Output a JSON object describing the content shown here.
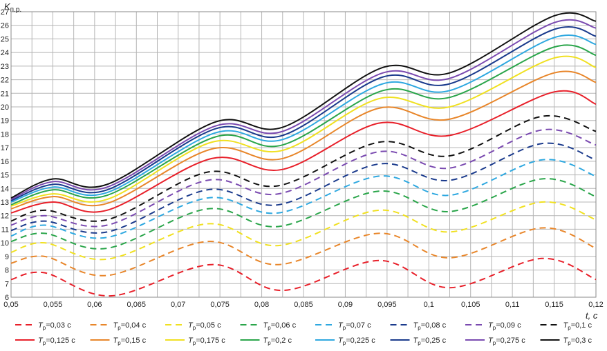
{
  "chart_data": {
    "type": "line",
    "title": "",
    "ylabel": "K",
    "ylabel_sub": "п.р.",
    "xlabel": "t, с",
    "xlim": [
      0.05,
      0.12
    ],
    "ylim": [
      6,
      27
    ],
    "grid": true,
    "legend_position": "bottom",
    "x_ticks": [
      "0,05",
      "0,055",
      "0,06",
      "0,065",
      "0,07",
      "0,075",
      "0,08",
      "0,085",
      "0,09",
      "0,095",
      "0,1",
      "0,105",
      "0,11",
      "0,115",
      "0,12"
    ],
    "y_ticks": [
      "6",
      "7",
      "8",
      "9",
      "10",
      "11",
      "12",
      "13",
      "14",
      "15",
      "16",
      "17",
      "18",
      "19",
      "20",
      "21",
      "22",
      "23",
      "24",
      "25",
      "26",
      "27"
    ],
    "legend_prefix": "T",
    "legend_sub": "p",
    "series": [
      {
        "name": "=0,03 с",
        "color": "#e8202a",
        "dashed": true,
        "x": [
          0.05,
          0.054,
          0.062,
          0.074,
          0.0825,
          0.094,
          0.1025,
          0.1135,
          0.12
        ],
        "y": [
          7.3,
          7.8,
          6.1,
          8.4,
          6.5,
          8.7,
          6.7,
          8.85,
          7.3
        ]
      },
      {
        "name": "=0,04 с",
        "color": "#e8862a",
        "dashed": true,
        "x": [
          0.05,
          0.054,
          0.0615,
          0.0735,
          0.082,
          0.094,
          0.1025,
          0.1135,
          0.12
        ],
        "y": [
          8.5,
          9.0,
          7.6,
          10.1,
          8.4,
          10.7,
          8.9,
          11.1,
          9.6
        ]
      },
      {
        "name": "=0,05 с",
        "color": "#f0e020",
        "dashed": true,
        "x": [
          0.05,
          0.054,
          0.0615,
          0.0735,
          0.082,
          0.094,
          0.1025,
          0.1135,
          0.12
        ],
        "y": [
          9.3,
          10.0,
          8.8,
          11.4,
          9.8,
          12.4,
          10.8,
          13.0,
          11.7
        ]
      },
      {
        "name": "=0,06 с",
        "color": "#2aa54a",
        "dashed": true,
        "x": [
          0.05,
          0.054,
          0.0615,
          0.0735,
          0.082,
          0.094,
          0.1025,
          0.1135,
          0.12
        ],
        "y": [
          10.1,
          10.7,
          9.6,
          12.5,
          11.2,
          13.8,
          12.3,
          14.7,
          13.4
        ]
      },
      {
        "name": "=0,07 с",
        "color": "#2ea8e0",
        "dashed": true,
        "x": [
          0.05,
          0.054,
          0.0615,
          0.0735,
          0.082,
          0.094,
          0.1025,
          0.1135,
          0.12
        ],
        "y": [
          10.5,
          11.3,
          10.4,
          13.3,
          12.2,
          14.9,
          13.5,
          16.1,
          14.9
        ]
      },
      {
        "name": "=0,08 с",
        "color": "#1a3a8c",
        "dashed": true,
        "x": [
          0.05,
          0.054,
          0.0615,
          0.0735,
          0.082,
          0.094,
          0.1025,
          0.1135,
          0.12
        ],
        "y": [
          10.9,
          11.6,
          10.8,
          13.9,
          12.8,
          15.8,
          14.6,
          17.3,
          16.1
        ]
      },
      {
        "name": "=0,09 с",
        "color": "#7a4ab0",
        "dashed": true,
        "x": [
          0.05,
          0.054,
          0.0615,
          0.0735,
          0.082,
          0.094,
          0.1025,
          0.1135,
          0.12
        ],
        "y": [
          11.3,
          12.0,
          11.3,
          14.6,
          13.6,
          16.7,
          15.5,
          18.3,
          17.2
        ]
      },
      {
        "name": "=0,1 с",
        "color": "#111111",
        "dashed": true,
        "x": [
          0.05,
          0.054,
          0.0615,
          0.0735,
          0.082,
          0.094,
          0.1025,
          0.1135,
          0.12
        ],
        "y": [
          11.6,
          12.4,
          11.7,
          15.2,
          14.2,
          17.4,
          16.4,
          19.3,
          18.2
        ]
      },
      {
        "name": "=0,125 с",
        "color": "#e8202a",
        "dashed": false,
        "x": [
          0.05,
          0.055,
          0.0615,
          0.074,
          0.0825,
          0.094,
          0.1025,
          0.115,
          0.12
        ],
        "y": [
          12.2,
          13.0,
          12.4,
          16.2,
          15.4,
          18.8,
          17.9,
          21.1,
          20.2
        ]
      },
      {
        "name": "=0,15 с",
        "color": "#e8862a",
        "dashed": false,
        "x": [
          0.05,
          0.055,
          0.0615,
          0.074,
          0.0825,
          0.094,
          0.1025,
          0.115,
          0.12
        ],
        "y": [
          12.5,
          13.4,
          12.9,
          16.9,
          16.2,
          19.9,
          19.1,
          22.5,
          21.8
        ]
      },
      {
        "name": "=0,175 с",
        "color": "#f0e020",
        "dashed": false,
        "x": [
          0.05,
          0.055,
          0.0615,
          0.074,
          0.0825,
          0.094,
          0.1025,
          0.115,
          0.12
        ],
        "y": [
          12.7,
          13.6,
          13.2,
          17.4,
          16.8,
          20.6,
          20.0,
          23.6,
          22.9
        ]
      },
      {
        "name": "=0,2 с",
        "color": "#2aa54a",
        "dashed": false,
        "x": [
          0.05,
          0.055,
          0.0615,
          0.0745,
          0.0825,
          0.0945,
          0.1025,
          0.115,
          0.12
        ],
        "y": [
          12.8,
          13.9,
          13.5,
          17.8,
          17.2,
          21.2,
          20.7,
          24.4,
          23.8
        ]
      },
      {
        "name": "=0,225 с",
        "color": "#2ea8e0",
        "dashed": false,
        "x": [
          0.05,
          0.055,
          0.0615,
          0.0745,
          0.0825,
          0.0945,
          0.1025,
          0.115,
          0.12
        ],
        "y": [
          13.0,
          14.1,
          13.7,
          18.1,
          17.6,
          21.7,
          21.2,
          25.1,
          24.6
        ]
      },
      {
        "name": "=0,25 с",
        "color": "#1a3a8c",
        "dashed": false,
        "x": [
          0.05,
          0.055,
          0.0615,
          0.0745,
          0.0825,
          0.0945,
          0.1025,
          0.115,
          0.12
        ],
        "y": [
          13.1,
          14.3,
          13.9,
          18.4,
          17.9,
          22.2,
          21.7,
          25.7,
          25.2
        ]
      },
      {
        "name": "=0,275 с",
        "color": "#7a4ab0",
        "dashed": false,
        "x": [
          0.05,
          0.055,
          0.0615,
          0.0745,
          0.0825,
          0.0945,
          0.1025,
          0.115,
          0.12
        ],
        "y": [
          13.2,
          14.5,
          14.1,
          18.6,
          18.2,
          22.5,
          22.1,
          26.2,
          25.8
        ]
      },
      {
        "name": "=0,3 с",
        "color": "#111111",
        "dashed": false,
        "x": [
          0.05,
          0.055,
          0.0615,
          0.0745,
          0.0825,
          0.0945,
          0.1025,
          0.115,
          0.12
        ],
        "y": [
          13.3,
          14.7,
          14.3,
          18.9,
          18.5,
          22.9,
          22.5,
          26.7,
          26.3
        ]
      }
    ]
  }
}
